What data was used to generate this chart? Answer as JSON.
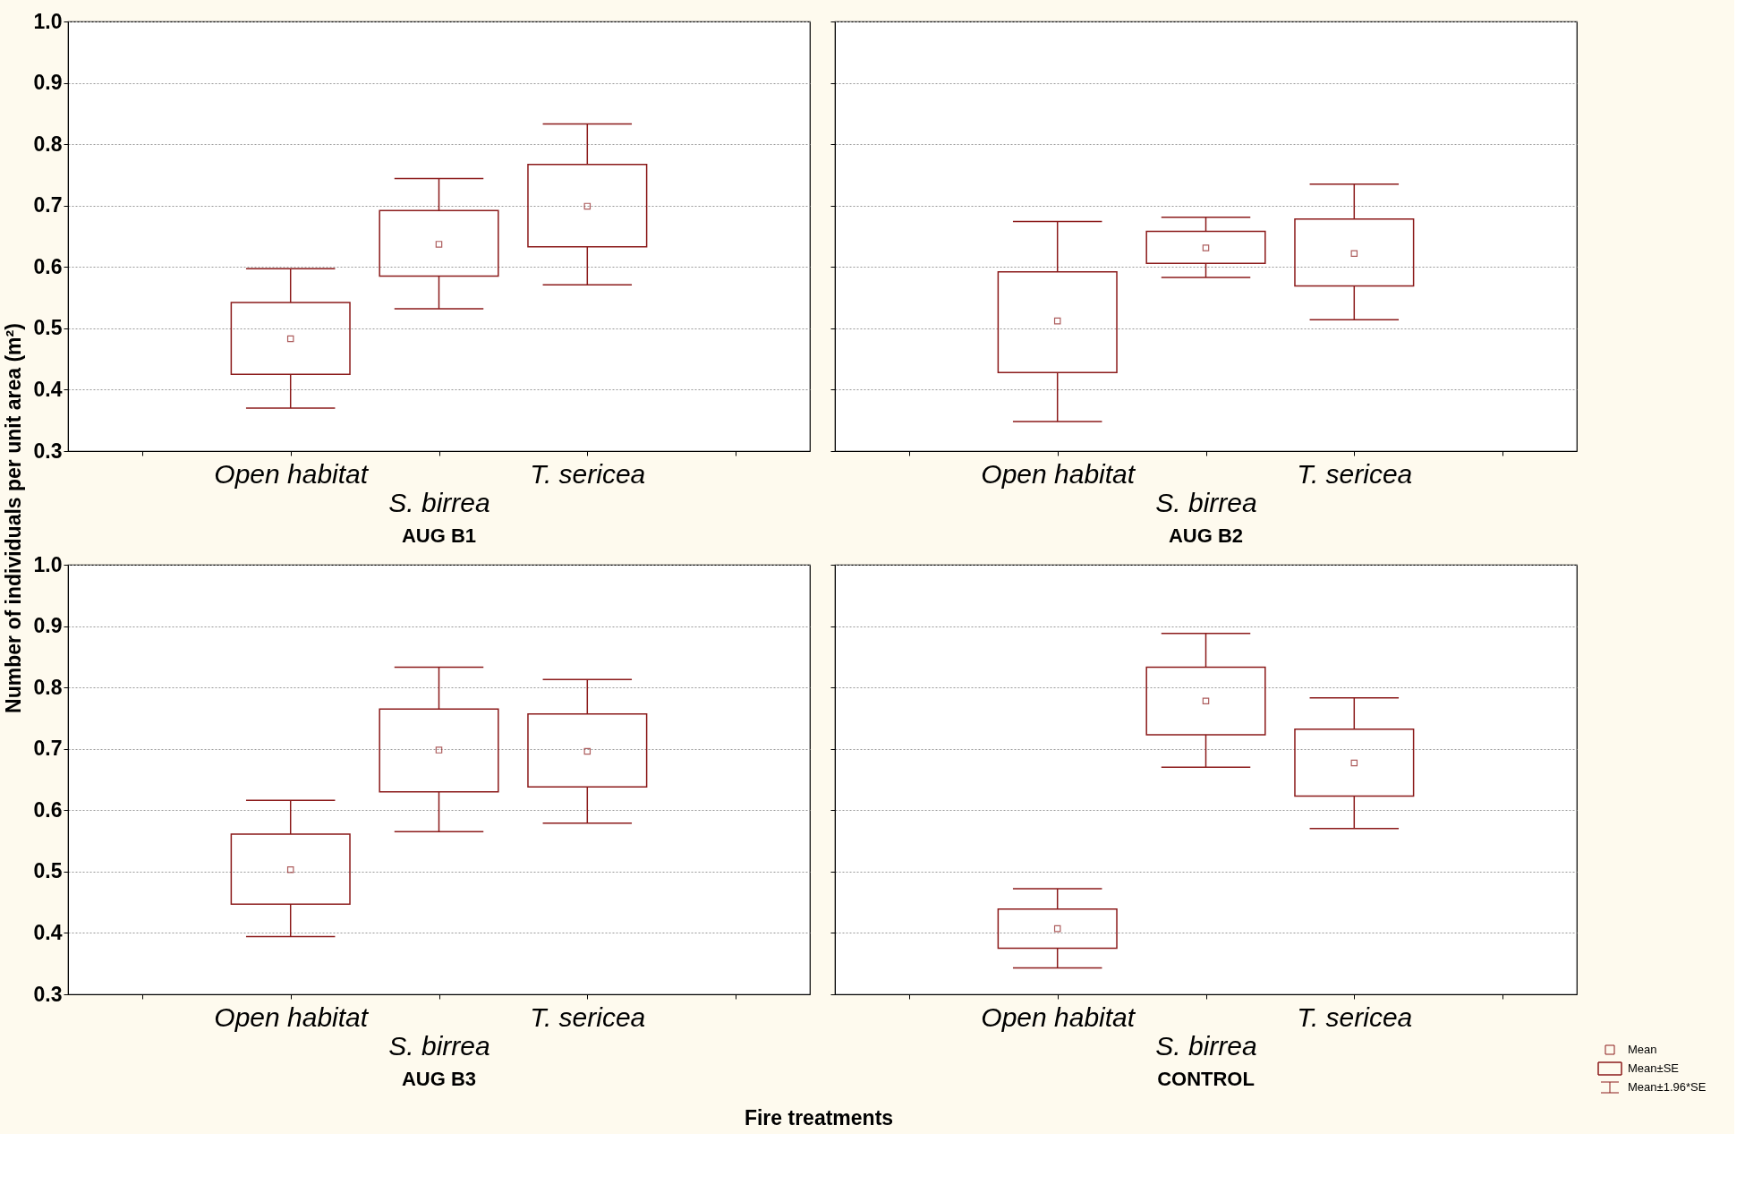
{
  "chart_data": [
    {
      "type": "box",
      "title": "AUG B1",
      "ylabel": "Number of individuals per unit area (m²)",
      "xlabel": "Fire treatments",
      "categories": [
        "Open habitat",
        "S. birrea",
        "T. sericea"
      ],
      "color": "#8b1a1a",
      "ylim": [
        0.3,
        1.0
      ],
      "yticks": [
        0.3,
        0.4,
        0.5,
        0.6,
        0.7,
        0.8,
        0.9,
        {
          "value": 1.0,
          "label": "1.0"
        }
      ],
      "grid": "y",
      "boxes": [
        {
          "low": 0.37,
          "q1": 0.425,
          "mean": 0.483,
          "q3": 0.542,
          "high": 0.597
        },
        {
          "low": 0.532,
          "q1": 0.585,
          "mean": 0.637,
          "q3": 0.692,
          "high": 0.744
        },
        {
          "low": 0.571,
          "q1": 0.633,
          "mean": 0.699,
          "q3": 0.767,
          "high": 0.833
        }
      ]
    },
    {
      "type": "box",
      "title": "AUG B2",
      "categories": [
        "Open habitat",
        "S. birrea",
        "T. sericea"
      ],
      "color": "#8b1a1a",
      "ylim": [
        0.3,
        1.0
      ],
      "yticks": [
        0.3,
        0.4,
        0.5,
        0.6,
        0.7,
        0.8,
        0.9,
        1.0
      ],
      "grid": "y",
      "tick_labels": "x",
      "boxes": [
        {
          "low": 0.348,
          "q1": 0.428,
          "mean": 0.512,
          "q3": 0.592,
          "high": 0.674
        },
        {
          "low": 0.583,
          "q1": 0.606,
          "mean": 0.631,
          "q3": 0.658,
          "high": 0.681
        },
        {
          "low": 0.514,
          "q1": 0.569,
          "mean": 0.622,
          "q3": 0.678,
          "high": 0.735
        }
      ]
    },
    {
      "type": "box",
      "title": "AUG B3",
      "categories": [
        "Open habitat",
        "S. birrea",
        "T. sericea"
      ],
      "color": "#8b1a1a",
      "ylim": [
        0.3,
        1.0
      ],
      "yticks": [
        0.3,
        0.4,
        0.5,
        0.6,
        0.7,
        0.8,
        0.9,
        {
          "value": 1.0,
          "label": "1.0"
        }
      ],
      "grid": "y",
      "boxes": [
        {
          "low": 0.394,
          "q1": 0.447,
          "mean": 0.503,
          "q3": 0.561,
          "high": 0.616
        },
        {
          "low": 0.565,
          "q1": 0.63,
          "mean": 0.698,
          "q3": 0.765,
          "high": 0.833
        },
        {
          "low": 0.579,
          "q1": 0.638,
          "mean": 0.696,
          "q3": 0.757,
          "high": 0.813
        }
      ]
    },
    {
      "type": "box",
      "title": "CONTROL",
      "categories": [
        "Open habitat",
        "S. birrea",
        "T. sericea"
      ],
      "color": "#8b1a1a",
      "ylim": [
        0.3,
        1.0
      ],
      "yticks": [
        0.3,
        0.4,
        0.5,
        0.6,
        0.7,
        0.8,
        0.9,
        1.0
      ],
      "grid": "y",
      "tick_labels": "x",
      "annotations": [
        "Mean",
        "Mean±SE",
        "Mean±1.96*SE"
      ],
      "boxes": [
        {
          "low": 0.343,
          "q1": 0.375,
          "mean": 0.407,
          "q3": 0.439,
          "high": 0.472
        },
        {
          "low": 0.67,
          "q1": 0.723,
          "mean": 0.778,
          "q3": 0.833,
          "high": 0.888
        },
        {
          "low": 0.57,
          "q1": 0.623,
          "mean": 0.677,
          "q3": 0.732,
          "high": 0.783
        }
      ]
    }
  ]
}
